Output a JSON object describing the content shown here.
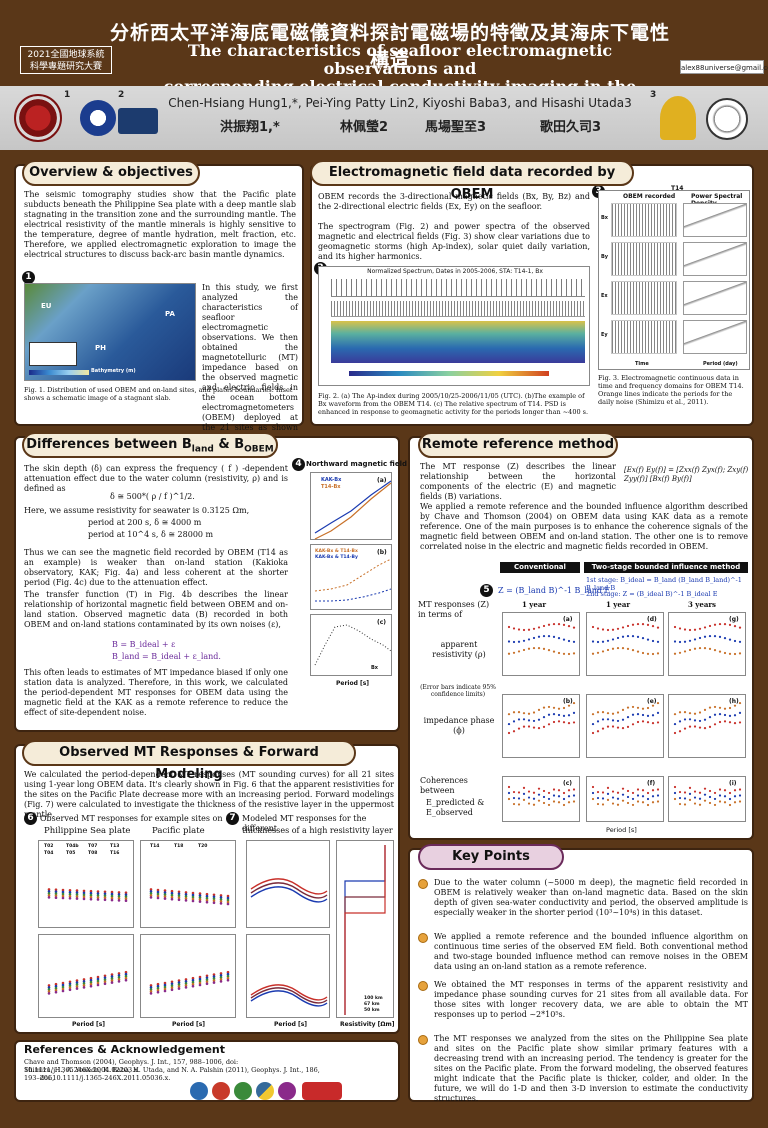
{
  "header": {
    "title_zh": "分析西太平洋海底電磁儀資料探討電磁場的特徵及其海床下電性構造",
    "title_en_line1": "The characteristics of seafloor electromagnetic observations and",
    "title_en_line2": "corresponding electrical conductivity imaging in the western Pacific",
    "conference_line1": "2021全國地球系統",
    "conference_line2": "科學專題研究大賽",
    "email": "alex88universe@gmail.com"
  },
  "authors": {
    "english": "Chen-Hsiang Hung1,*, Pei-Ying Patty Lin2, Kiyoshi Baba3, and Hisashi Utada3",
    "zh": [
      "洪振翔1,*",
      "林佩瑩2",
      "馬場聖至3",
      "歌田久司3"
    ],
    "aff_numbers": [
      "1",
      "2",
      "3"
    ]
  },
  "overview": {
    "title": "Overview & objectives",
    "p1": "The seismic tomography studies show that the Pacific plate subducts beneath the Philippine Sea plate with a deep mantle slab stagnating in the transition zone and the surrounding mantle. The electrical resistivity of the mantle minerals is highly sensitive to the temperature, degree of mantle hydration, melt fraction, etc. Therefore, we applied electromagnetic exploration to image the electrical structures to discuss back-arc basin mantle dynamics.",
    "p2": "In this study, we first analyzed the characteristics of seafloor electromagnetic observations. We then obtained the magnetotelluric (MT) impedance based on the observed magnetic and electric fields in the ocean bottom electromagnetometers (OBEM) deployed at the 21 sites as shown in Fig. 1.",
    "fig1_caption": "Fig. 1. Distribution of used OBEM and on-land sites, and plates boundaries. Inset shows a schematic image of a stagnant slab.",
    "fig1_num": "1",
    "map_labels": [
      "EU",
      "PA",
      "PH"
    ],
    "map_legend": "Bathymetry (m)"
  },
  "em_data": {
    "title": "Electromagnetic field data recorded by OBEM",
    "p1": "OBEM records the 3-directional magnetic fields (Bx, By, Bz) and the 2-directional electric fields (Ex, Ey) on the seafloor.",
    "p2": "The spectrogram (Fig. 2) and power spectra of the observed magnetic and electrical fields (Fig. 3) show clear variations due to geomagnetic storms (high Ap-index), solar quiet daily variation, and its higher harmonics.",
    "fig2_title": "Normalized Spectrum, Dates in 2005-2006, STA: T14-1, Bx",
    "fig2_caption": "Fig. 2. (a) The Ap-index during 2005/10/25-2006/11/05 (UTC). (b)The example of Bx waveform from the OBEM T14. (c) The relative spectrum of T14. PSD is enhanced in response to geomagnetic activity for the periods longer than ~400 s.",
    "fig2_num": "2",
    "fig3_num": "3",
    "fig3_heading_left": "OBEM recorded",
    "fig3_heading_mid": "T14",
    "fig3_heading_right": "Power Spectral Density",
    "fig3_rows": [
      "Bx",
      "By",
      "Ex",
      "Ey"
    ],
    "fig3_xlabel_left": "Time",
    "fig3_xlabel_right": "Period (day)",
    "fig3_caption": "Fig. 3. Electromagnetic continuous data in time and frequency domains for OBEM T14. Orange lines indicate the periods for the daily noise (Shimizu et al., 2011)."
  },
  "differences": {
    "title": "Differences between B_land & B_OBEM",
    "title_main": "Differences between B",
    "title_sub1": "land",
    "title_mid": " & B",
    "title_sub2": "OBEM",
    "p1": "The skin depth (δ) can express the frequency ( f ) -dependent attenuation effect due to the water column (resistivity, ρ) and is defined as",
    "eq_skin": "δ ≅ 500*( ρ / f )^1/2.",
    "p2": "Here, we assume resistivity for seawater is 0.3125 Ωm,",
    "eq_200": "period at 200 s,  δ ≅ 4000 m",
    "eq_1e4": "period at 10^4 s,  δ ≅ 28000 m",
    "p3": "Thus we can see the magnetic field recorded by OBEM (T14 as an example) is weaker than on-land station (Kakioka observatory, KAK; Fig. 4a) and less coherent at the shorter period (Fig. 4c) due to the attenuation effect.",
    "p4": "The transfer function (T) in Fig. 4b describes the linear relationship of horizontal magnetic field between OBEM and on-land station. Observed magnetic data (B) recorded in both OBEM and on-land stations contaminated by its own noises (ε),",
    "eq_b": "B = B_ideal + ε",
    "eq_bland": "B_land = B_ideal + ε_land.",
    "p5": "This often leads to estimates of MT impedance biased if only one station data is analyzed. Therefore, in this work, we calculated the period-dependent MT responses for OBEM data using the magnetic field at the KAK as a remote reference to reduce the effect of site-dependent noise.",
    "fig4_num": "4",
    "fig4_title": "Northward magnetic field",
    "fig4_legend_a": [
      "KAK-Bx",
      "T14-Bx"
    ],
    "fig4_legend_b": [
      "KAK-Bx & T14-Bx",
      "KAK-Bx & T14-By"
    ],
    "fig4_legend_c": "Bx",
    "fig4_panels": [
      "(a)",
      "(b)",
      "(c)"
    ],
    "fig4_ylabels": [
      "Power Spectral Density [nT²/Hz]",
      "Transfer function [nT/nT]",
      "Squared coherence"
    ],
    "fig4_xlabel": "Period [s]"
  },
  "remote": {
    "title": "Remote reference method",
    "p1": "The MT response (Z) describes the linear relationship between the horizontal components of the electric (E) and magnetic fields (B) variations.",
    "matrix": "[Ex(f) Ey(f)] = [Zxx(f) Zyx(f); Zxy(f) Zyy(f)] [Bx(f) By(f)]",
    "p2": "We applied a remote reference and the bounded influence algorithm described by Chave and Thomson (2004) on OBEM data using KAK data as a remote reference. One of the main purposes is to enhance the coherence signals of the magnetic field between OBEM and on-land station. The other one is to remove correlated noise in the electric and magnetic fields recorded in OBEM.",
    "fig5_num": "5",
    "conv_header": "Conventional method",
    "two_header": "Two-stage bounded influence method",
    "conv_eq": "Z = (B_land B)^-1 B_land E",
    "stage1": "1st stage: B_ideal = B_land (B_land B_land)^-1 B_land B",
    "stage2": "2nd stage: Z = (B_ideal B)^-1 B_ideal E",
    "col_labels": [
      "1 year",
      "1 year",
      "3 years"
    ],
    "left_label_1": "MT responses (Z) in terms of",
    "left_label_2": "apparent resistivity (ρ)",
    "left_label_3": "(Error bars indicate 95% confidence limits)",
    "left_label_4": "impedance phase (ϕ)",
    "left_label_5": "Coherences between",
    "left_label_6": "E_predicted & E_observed",
    "panel_letters": [
      "(a)",
      "(d)",
      "(g)",
      "(b)",
      "(e)",
      "(h)",
      "(c)",
      "(f)",
      "(i)"
    ],
    "xlabel": "Period [s]",
    "ylabels": [
      "Log apparent resistivity [Ωm]",
      "Phase [deg.]",
      "Squared coherence"
    ]
  },
  "observed": {
    "title": "Observed MT Responses & Forward Modeling",
    "p1": "We calculated the period-dependent MT responses (MT sounding curves) for all 21 sites using 1-year long OBEM data. It's clearly shown in Fig. 6 that the apparent resistivities for the sites on the Pacific Plate decrease more with an increasing period. Forward modelings (Fig. 7) were calculated to investigate the thickness of the resistive layer in the uppermost mantle.",
    "fig6_num": "6",
    "fig6_caption": "Observed MT responses for example sites on",
    "fig6_left": "Philippine Sea plate",
    "fig6_right": "Pacific plate",
    "fig6_legend_left": [
      "T02",
      "T04b",
      "T07",
      "T13",
      "T04",
      "T05",
      "T08",
      "T16"
    ],
    "fig6_legend_right": [
      "T14",
      "T18",
      "T20"
    ],
    "fig7_num": "7",
    "fig7_caption_1": "Modeled MT responses for the different",
    "fig7_caption_2": "thicknesses of a high resistivity layer",
    "fig7_legend": [
      "100 km",
      "67 km",
      "50 km"
    ],
    "xlabel": "Period [s]",
    "xlabel_res": "Resistivity [Ωm]",
    "ylabels": [
      "Log apparent resistivity [Ωm]",
      "Phase [deg.]",
      "Depth [km]"
    ]
  },
  "keypoints": {
    "title": "Key Points",
    "items": [
      "Due to the water column (~5000 m deep), the magnetic field recorded in OBEM is relatively weaker than on-land magnetic data. Based on the skin depth of given sea-water conductivity and period, the observed amplitude is especially weaker in the shorter period (10³~10⁴s) in this dataset.",
      "We applied a remote reference and the bounded influence algorithm on continuous time series of the observed EM field. Both conventional method and two-stage bounded influence method can remove noises in the OBEM data using an on-land station as a remote reference.",
      "We obtained the MT responses in terms of the apparent resistivity and impedance phase sounding curves for 21 sites from all available data. For those sites with longer recovery data, we are able to obtain the MT responses up to period ~2*10⁵s.",
      "The MT responses we analyzed from the sites on the Philippine Sea plate and sites on the Pacific plate show similar primary features with a decreasing trend with an increasing period. The tendency is greater for the sites on the Pacific plate. From the forward modeling, the observed features might indicate that the Pacific plate is thicker, colder, and older. In the future, we will do 1-D and then 3-D inversion to estimate the conductivity structures."
    ]
  },
  "references": {
    "title": "References & Acknowledgement",
    "ref1": "Chave and Thomson (2004), Geophys. J. Int., 157, 988–1006, doi: 10.1111/j.1365246X.2004.02203.x.",
    "ref2": "Shimizu, H., A. Yoneda, K. Baba, H. Utada, and N. A. Palshin (2011), Geophys. J. Int., 186, 193–206,",
    "ref3": "doi:10.1111/j.1365-246X.2011.05036.x."
  },
  "colors": {
    "background": "#5a3718",
    "section_title": "#f5ecd9",
    "accent_purple": "#6a2a9a",
    "accent_blue": "#1a3ab0",
    "bullet": "#e6a23c"
  }
}
